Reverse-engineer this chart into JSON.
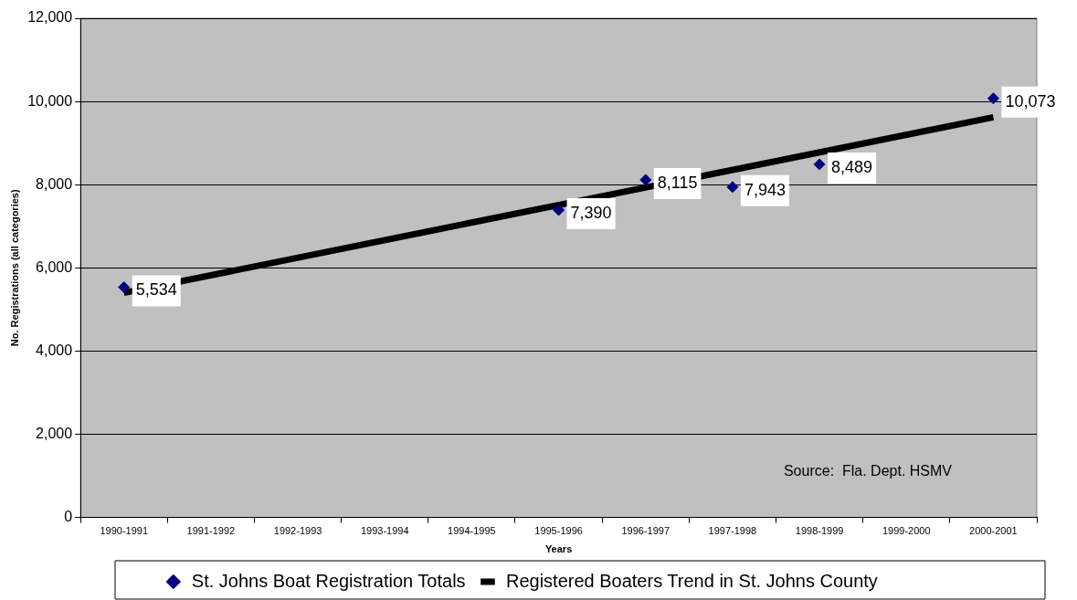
{
  "chart_data": {
    "type": "scatter",
    "xlabel": "Years",
    "ylabel": "No. Registrations (all categories)",
    "categories": [
      "1990-1991",
      "1991-1992",
      "1992-1993",
      "1993-1994",
      "1994-1995",
      "1995-1996",
      "1996-1997",
      "1997-1998",
      "1998-1999",
      "1999-2000",
      "2000-2001"
    ],
    "series": [
      {
        "name": "St. Johns Boat Registration Totals",
        "color": "#000080",
        "marker": "diamond",
        "values": [
          5534,
          null,
          null,
          null,
          null,
          7390,
          8115,
          7943,
          8489,
          null,
          10073
        ],
        "value_labels": [
          "5,534",
          null,
          null,
          null,
          null,
          "7,390",
          "8,115",
          "7,943",
          "8,489",
          null,
          "10,073"
        ]
      },
      {
        "name": "Registered Boaters Trend in St. Johns County",
        "type": "line",
        "color": "#000000",
        "x": [
          "1990-1991",
          "2000-2001"
        ],
        "values": [
          5400,
          9620
        ]
      }
    ],
    "ylim": [
      0,
      12000
    ],
    "yticks": [
      {
        "value": 0,
        "label": "0"
      },
      {
        "value": 2000,
        "label": "2,000"
      },
      {
        "value": 4000,
        "label": "4,000"
      },
      {
        "value": 6000,
        "label": "6,000"
      },
      {
        "value": 8000,
        "label": "8,000"
      },
      {
        "value": 10000,
        "label": "10,000"
      },
      {
        "value": 12000,
        "label": "12,000"
      }
    ],
    "grid": "y",
    "legend": "bottom",
    "annotations": [
      "Source:  Fla. Dept. HSMV"
    ]
  }
}
